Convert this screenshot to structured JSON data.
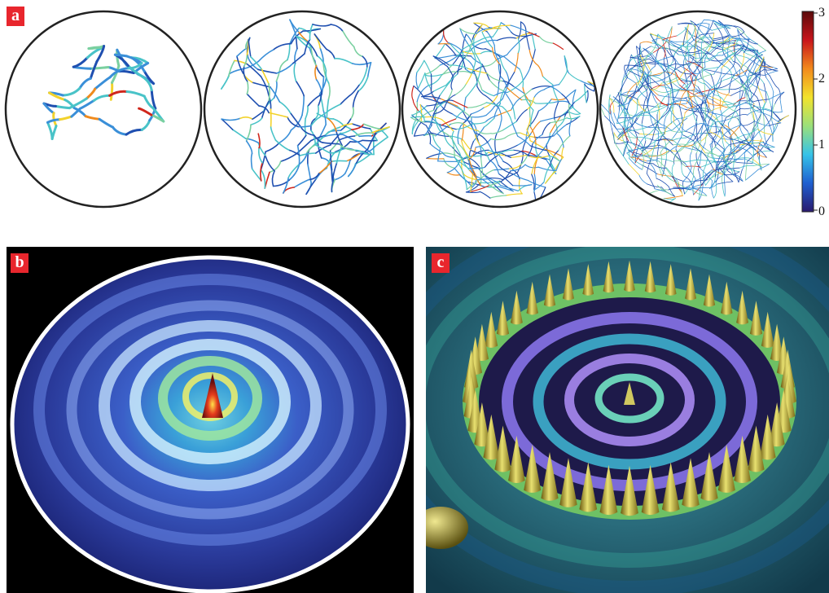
{
  "panels": {
    "a": {
      "label": "a"
    },
    "b": {
      "label": "b"
    },
    "c": {
      "label": "c"
    }
  },
  "colorbar": {
    "ticks": [
      "3",
      "2",
      "1",
      "0"
    ],
    "colors": [
      "#2a1a6e",
      "#1f5fd0",
      "#36c3e8",
      "#9be07a",
      "#f2e22c",
      "#f28a1c",
      "#c8151b",
      "#5a0a0a"
    ]
  },
  "trajectories": {
    "count": 4,
    "colors": [
      "#1f4fb0",
      "#3a8fd8",
      "#49c3c8",
      "#7ad0a0",
      "#f2d22c",
      "#f08a1c",
      "#d0261b"
    ]
  },
  "colors": {
    "label_bg": "#e8262d",
    "circle_stroke": "#222222"
  }
}
